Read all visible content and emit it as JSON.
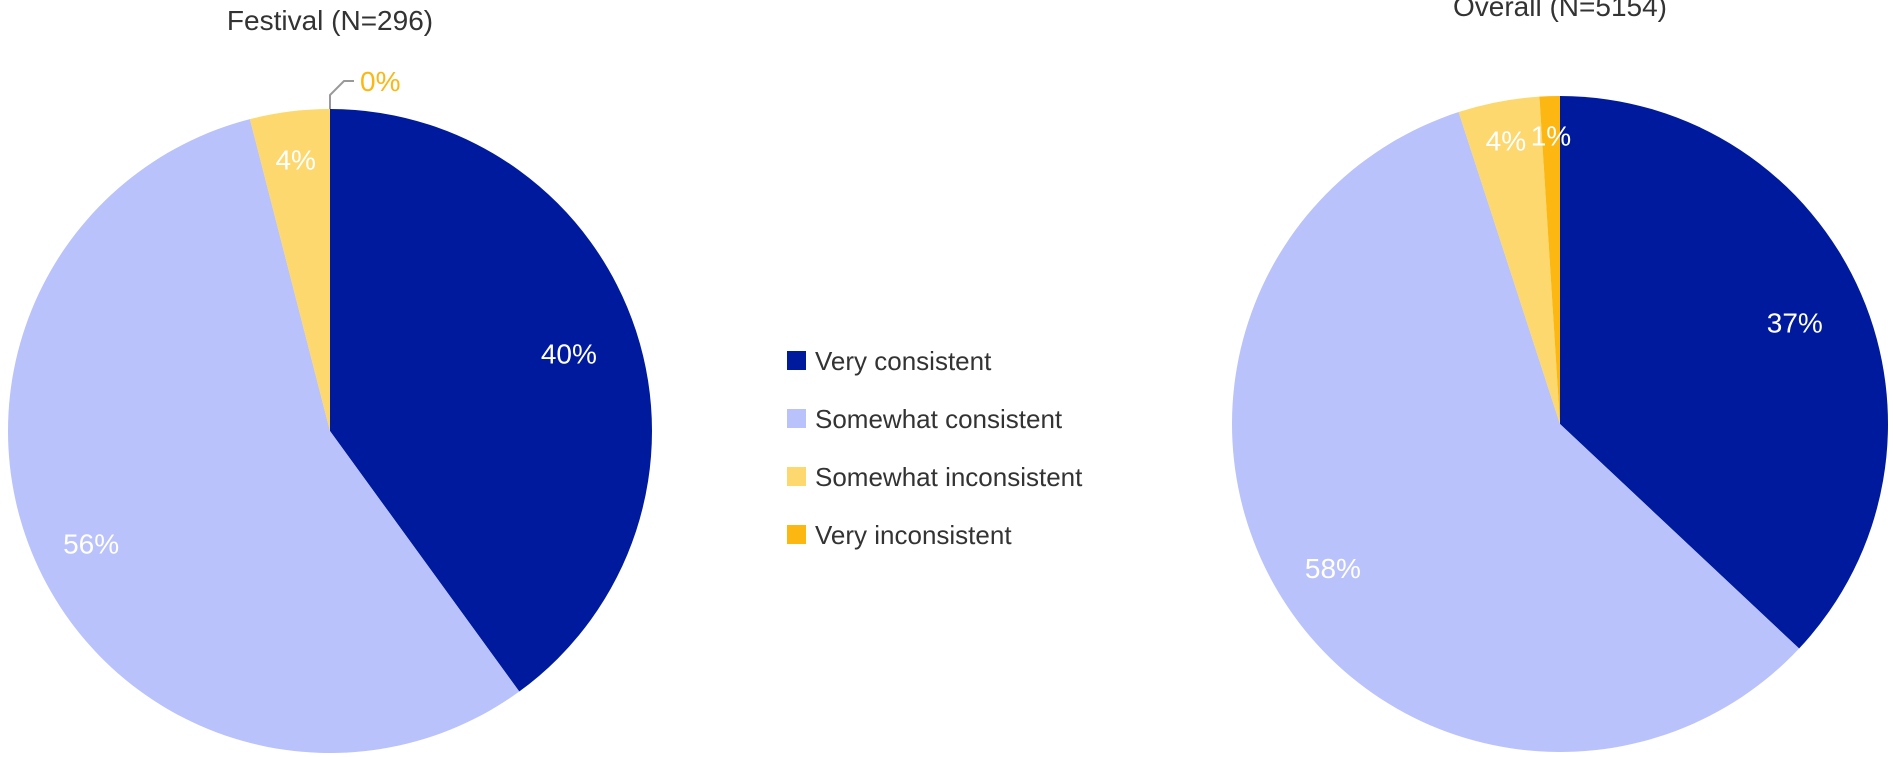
{
  "chart_data": [
    {
      "type": "pie",
      "title": "Festival (N=296)",
      "categories": [
        "Very consistent",
        "Somewhat consistent",
        "Somewhat inconsistent",
        "Very inconsistent"
      ],
      "values": [
        40,
        56,
        4,
        0
      ],
      "labels": [
        "40%",
        "56%",
        "4%",
        "0%"
      ]
    },
    {
      "type": "pie",
      "title": "Overall (N=5154)",
      "categories": [
        "Very consistent",
        "Somewhat consistent",
        "Somewhat inconsistent",
        "Very inconsistent"
      ],
      "values": [
        37,
        58,
        4,
        1
      ],
      "labels": [
        "37%",
        "58%",
        "4%",
        "1%"
      ]
    }
  ],
  "legend": {
    "placement": "center",
    "items": [
      {
        "label": "Very consistent",
        "color": "#001a9e"
      },
      {
        "label": "Somewhat consistent",
        "color": "#b9c2fb"
      },
      {
        "label": "Somewhat inconsistent",
        "color": "#fdd86f"
      },
      {
        "label": "Very inconsistent",
        "color": "#fcb713"
      }
    ]
  },
  "colors": {
    "inside_label": "#ffffff",
    "zero_label": "#fcb713",
    "leader_line": "#999999"
  }
}
